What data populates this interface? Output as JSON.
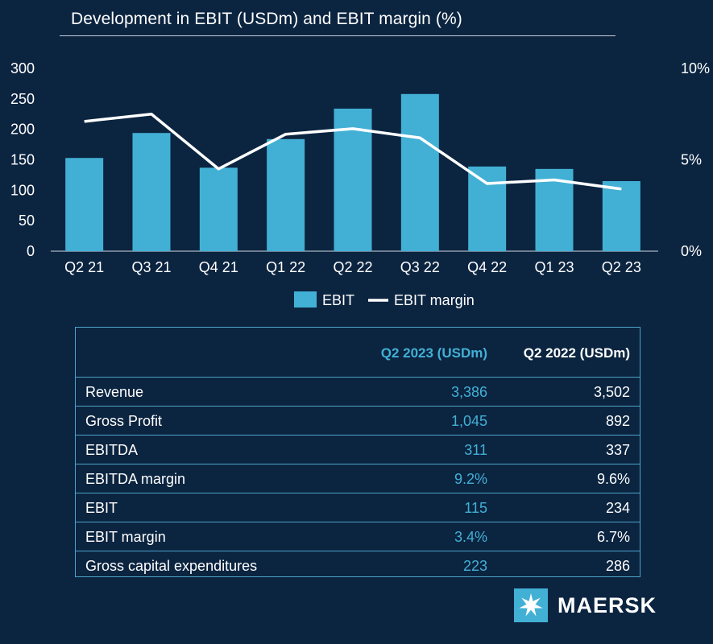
{
  "chart_data": {
    "type": "bar",
    "title": "Development in EBIT (USDm) and EBIT margin (%)",
    "categories": [
      "Q2 21",
      "Q3 21",
      "Q4 21",
      "Q1 22",
      "Q2 22",
      "Q3 22",
      "Q4 22",
      "Q1 23",
      "Q2 23"
    ],
    "series": [
      {
        "name": "EBIT",
        "kind": "bar",
        "axis": "left",
        "values": [
          153,
          194,
          137,
          184,
          234,
          258,
          139,
          135,
          115
        ]
      },
      {
        "name": "EBIT margin",
        "kind": "line",
        "axis": "right",
        "values": [
          7.1,
          7.5,
          4.5,
          6.4,
          6.7,
          6.2,
          3.7,
          3.9,
          3.4
        ]
      }
    ],
    "y_left": {
      "ticks": [
        "300",
        "250",
        "200",
        "150",
        "100",
        "50",
        "0"
      ],
      "ylim": [
        0,
        300
      ]
    },
    "y_right": {
      "ticks": [
        "10%",
        "5%",
        "0%"
      ],
      "ylim": [
        0,
        10
      ]
    },
    "grid": false,
    "legend_position": "bottom-center",
    "colors": {
      "bar": "#42b0d5",
      "line": "#ffffff",
      "background": "#0b2440"
    }
  },
  "table": {
    "headers": [
      "Q2 2023 (USDm)",
      "Q2 2022 (USDm)"
    ],
    "rows": [
      {
        "label": "Revenue",
        "q2_2023": "3,386",
        "q2_2022": "3,502"
      },
      {
        "label": "Gross Profit",
        "q2_2023": "1,045",
        "q2_2022": "892"
      },
      {
        "label": "EBITDA",
        "q2_2023": "311",
        "q2_2022": "337"
      },
      {
        "label": "EBITDA margin",
        "q2_2023": "9.2%",
        "q2_2022": "9.6%"
      },
      {
        "label": "EBIT",
        "q2_2023": "115",
        "q2_2022": "234"
      },
      {
        "label": "EBIT margin",
        "q2_2023": "3.4%",
        "q2_2022": "6.7%"
      },
      {
        "label": "Gross capital expenditures",
        "q2_2023": "223",
        "q2_2022": "286"
      }
    ]
  },
  "logo": {
    "text": "MAERSK",
    "icon": "maersk-star-icon",
    "badge_color": "#42b0d5"
  }
}
